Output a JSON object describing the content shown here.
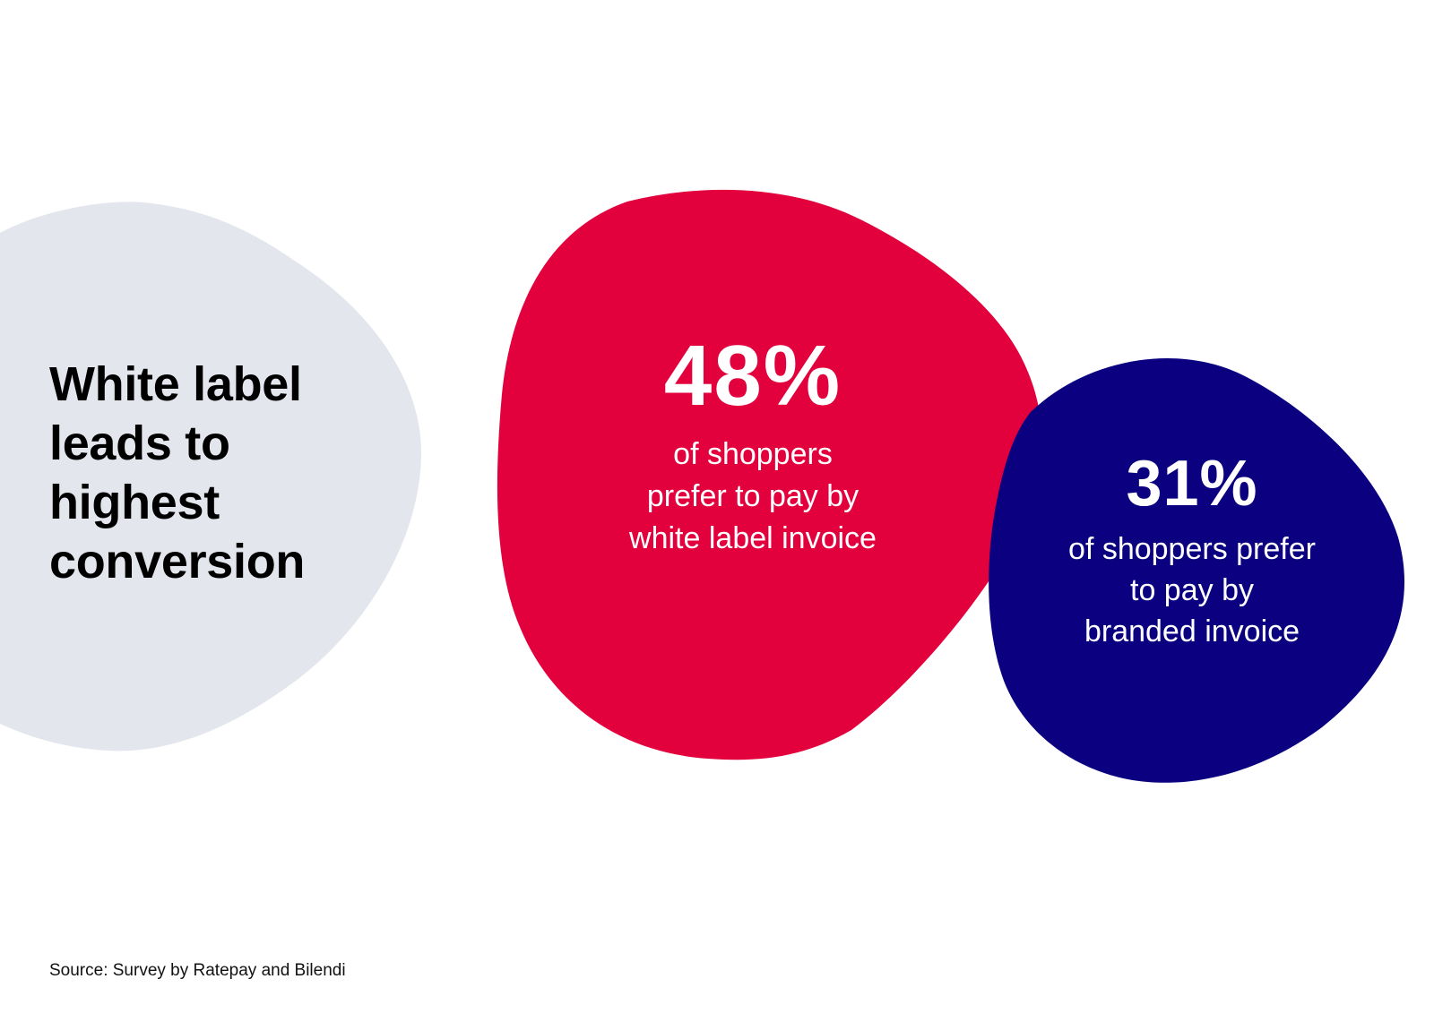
{
  "headline": {
    "lines": [
      "White label",
      "leads to",
      "highest",
      "conversion"
    ]
  },
  "stats": [
    {
      "value": "48%",
      "description": [
        "of shoppers",
        "prefer to pay by",
        "white label invoice"
      ],
      "color": "#E2003D"
    },
    {
      "value": "31%",
      "description": [
        "of shoppers prefer",
        "to pay by",
        "branded invoice"
      ],
      "color": "#0A0080"
    }
  ],
  "background_blob_color": "#E4E6EE",
  "text_color": "#000000",
  "source": "Source: Survey by Ratepay and Bilendi"
}
